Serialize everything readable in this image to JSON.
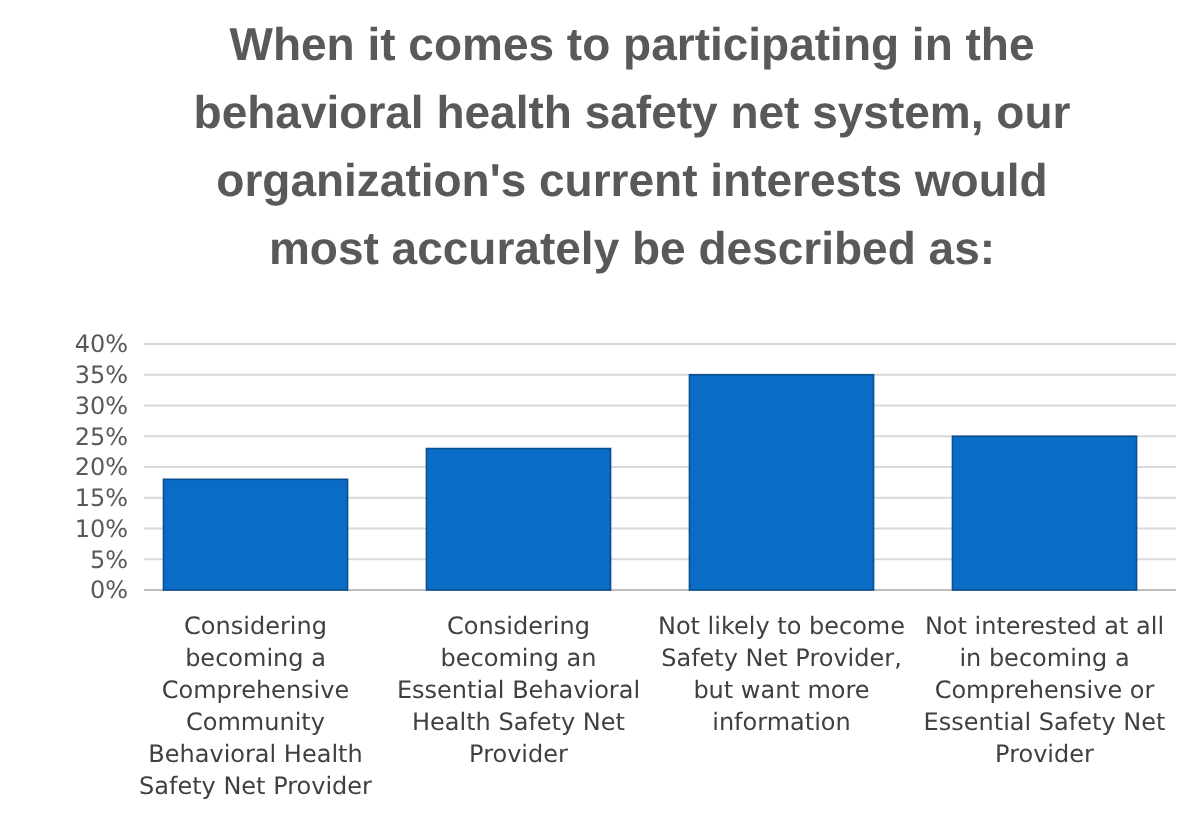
{
  "chart_data": {
    "type": "bar",
    "title": "When it comes to participating in the behavioral health safety net system, our organization's current interests would most accurately be described as:",
    "categories": [
      "Considering becoming a Comprehensive Community Behavioral Health Safety Net Provider",
      "Considering becoming an Essential Behavioral Health Safety Net Provider",
      "Not likely to become Safety Net Provider, but want more information",
      "Not interested at all in becoming a Comprehensive or Essential Safety Net Provider"
    ],
    "values": [
      0.18,
      0.23,
      0.35,
      0.25
    ],
    "color": "#0a6cc4",
    "ylim": [
      0,
      0.4
    ],
    "yticks": [
      {
        "value": 0,
        "label": "0%"
      },
      {
        "value": 0.05,
        "label": "5%"
      },
      {
        "value": 0.1,
        "label": "10%"
      },
      {
        "value": 0.15,
        "label": "15%"
      },
      {
        "value": 0.2,
        "label": "20%"
      },
      {
        "value": 0.25,
        "label": "25%"
      },
      {
        "value": 0.3,
        "label": "30%"
      },
      {
        "value": 0.35,
        "label": "35%"
      },
      {
        "value": 0.4,
        "label": "40%"
      }
    ],
    "grid": "y"
  }
}
